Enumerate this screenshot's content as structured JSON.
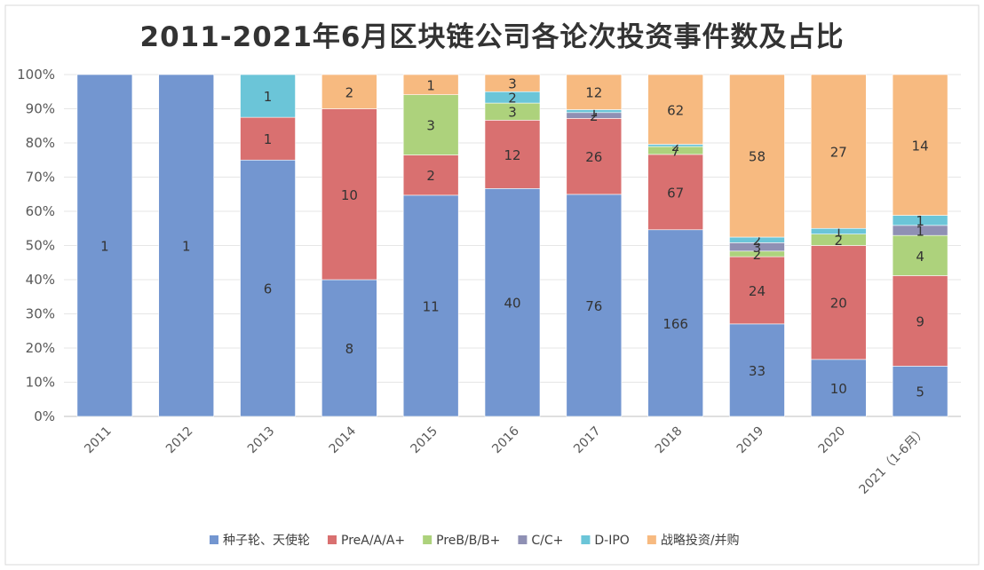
{
  "chart_data": {
    "type": "bar",
    "stacked": "percent",
    "title": "2011-2021年6月区块链公司各论次投资事件数及占比",
    "categories": [
      "2011",
      "2012",
      "2013",
      "2014",
      "2015",
      "2016",
      "2017",
      "2018",
      "2019",
      "2020",
      "2021（1-6月）"
    ],
    "ylim": [
      0,
      100
    ],
    "yticks": [
      0,
      10,
      20,
      30,
      40,
      50,
      60,
      70,
      80,
      90,
      100
    ],
    "ytick_suffix": "%",
    "legend_position": "bottom",
    "series": [
      {
        "name": "种子轮、天使轮",
        "color": "#7396d0",
        "values": [
          1,
          1,
          6,
          8,
          11,
          40,
          76,
          166,
          33,
          10,
          5
        ]
      },
      {
        "name": "PreA/A/A+",
        "color": "#d97070",
        "values": [
          0,
          0,
          1,
          10,
          2,
          12,
          26,
          67,
          24,
          20,
          9
        ]
      },
      {
        "name": "PreB/B/B+",
        "color": "#add27c",
        "values": [
          0,
          0,
          0,
          0,
          3,
          3,
          0,
          7,
          2,
          2,
          4
        ]
      },
      {
        "name": "C/C+",
        "color": "#8f90b4",
        "values": [
          0,
          0,
          0,
          0,
          0,
          0,
          2,
          0,
          3,
          0,
          1
        ]
      },
      {
        "name": "D-IPO",
        "color": "#6bc5d8",
        "values": [
          0,
          0,
          1,
          0,
          0,
          2,
          1,
          2,
          2,
          1,
          1
        ]
      },
      {
        "name": "战略投资/并购",
        "color": "#f7ba80",
        "values": [
          0,
          0,
          0,
          2,
          1,
          3,
          12,
          62,
          58,
          27,
          14
        ]
      }
    ]
  }
}
